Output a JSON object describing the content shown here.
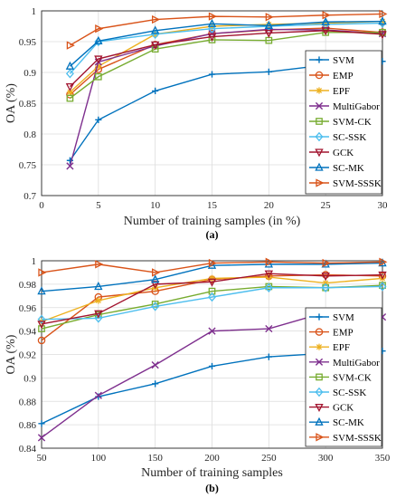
{
  "chart_data": [
    {
      "type": "line",
      "caption": "(a)",
      "xlabel": "Number of training samples (in %)",
      "ylabel": "OA (%)",
      "xlim": [
        0,
        30
      ],
      "ylim": [
        0.7,
        1
      ],
      "xticks": [
        "0",
        "5",
        "10",
        "15",
        "20",
        "25",
        "30"
      ],
      "yticks": [
        "0.7",
        "0.75",
        "0.8",
        "0.85",
        "0.9",
        "0.95",
        "1"
      ],
      "grid": true,
      "legend": "bottom-right",
      "x": [
        2.5,
        5,
        10,
        15,
        20,
        25,
        30
      ],
      "series": [
        {
          "name": "SVM",
          "color": "#0072BD",
          "marker": "plus",
          "values": [
            0.757,
            0.823,
            0.87,
            0.897,
            0.901,
            0.912,
            0.918
          ]
        },
        {
          "name": "EMP",
          "color": "#D95319",
          "marker": "circle",
          "values": [
            0.864,
            0.905,
            0.945,
            0.963,
            0.969,
            0.972,
            0.965
          ]
        },
        {
          "name": "EPF",
          "color": "#EDB120",
          "marker": "star",
          "values": [
            0.868,
            0.91,
            0.962,
            0.975,
            0.978,
            0.98,
            0.983
          ]
        },
        {
          "name": "MultiGabor",
          "color": "#7E2F8E",
          "marker": "x",
          "values": [
            0.748,
            0.917,
            0.943,
            0.963,
            0.97,
            0.969,
            0.963
          ]
        },
        {
          "name": "SVM-CK",
          "color": "#77AC30",
          "marker": "square",
          "values": [
            0.858,
            0.893,
            0.938,
            0.953,
            0.952,
            0.965,
            0.965
          ]
        },
        {
          "name": "SC-SSK",
          "color": "#4DBEEE",
          "marker": "diamond",
          "values": [
            0.898,
            0.95,
            0.962,
            0.971,
            0.975,
            0.978,
            0.98
          ]
        },
        {
          "name": "GCK",
          "color": "#A2142F",
          "marker": "triangle-down",
          "values": [
            0.877,
            0.922,
            0.945,
            0.958,
            0.964,
            0.968,
            0.962
          ]
        },
        {
          "name": "SC-MK",
          "color": "#0072BD",
          "marker": "triangle-up",
          "values": [
            0.91,
            0.951,
            0.968,
            0.979,
            0.976,
            0.982,
            0.983
          ]
        },
        {
          "name": "SVM-SSSK",
          "color": "#D95319",
          "marker": "triangle-right",
          "values": [
            0.944,
            0.971,
            0.986,
            0.991,
            0.99,
            0.993,
            0.995
          ]
        }
      ]
    },
    {
      "type": "line",
      "caption": "(b)",
      "xlabel": "Number of training samples",
      "ylabel": "OA (%)",
      "xlim": [
        50,
        350
      ],
      "ylim": [
        0.84,
        1
      ],
      "xticks": [
        "50",
        "100",
        "150",
        "200",
        "250",
        "300",
        "350"
      ],
      "yticks": [
        "0.84",
        "0.86",
        "0.88",
        "0.9",
        "0.92",
        "0.94",
        "0.96",
        "0.98",
        "1"
      ],
      "grid": true,
      "legend": "bottom-right",
      "x": [
        50,
        100,
        150,
        200,
        250,
        300,
        350
      ],
      "series": [
        {
          "name": "SVM",
          "color": "#0072BD",
          "marker": "plus",
          "values": [
            0.861,
            0.884,
            0.895,
            0.91,
            0.918,
            0.921,
            0.923
          ]
        },
        {
          "name": "EMP",
          "color": "#D95319",
          "marker": "circle",
          "values": [
            0.932,
            0.969,
            0.974,
            0.984,
            0.987,
            0.988,
            0.987
          ]
        },
        {
          "name": "EPF",
          "color": "#EDB120",
          "marker": "star",
          "values": [
            0.948,
            0.966,
            0.977,
            0.985,
            0.986,
            0.981,
            0.985
          ]
        },
        {
          "name": "MultiGabor",
          "color": "#7E2F8E",
          "marker": "x",
          "values": [
            0.849,
            0.885,
            0.911,
            0.94,
            0.942,
            0.956,
            0.952
          ]
        },
        {
          "name": "SVM-CK",
          "color": "#77AC30",
          "marker": "square",
          "values": [
            0.942,
            0.954,
            0.963,
            0.974,
            0.978,
            0.977,
            0.979
          ]
        },
        {
          "name": "SC-SSK",
          "color": "#4DBEEE",
          "marker": "diamond",
          "values": [
            0.95,
            0.951,
            0.961,
            0.969,
            0.977,
            0.977,
            0.978
          ]
        },
        {
          "name": "GCK",
          "color": "#A2142F",
          "marker": "triangle-down",
          "values": [
            0.946,
            0.955,
            0.98,
            0.982,
            0.989,
            0.987,
            0.988
          ]
        },
        {
          "name": "SC-MK",
          "color": "#0072BD",
          "marker": "triangle-up",
          "values": [
            0.974,
            0.978,
            0.984,
            0.996,
            0.997,
            0.997,
            0.998
          ]
        },
        {
          "name": "SVM-SSSK",
          "color": "#D95319",
          "marker": "triangle-right",
          "values": [
            0.99,
            0.997,
            0.99,
            0.998,
            0.999,
            0.998,
            0.999
          ]
        }
      ]
    }
  ]
}
